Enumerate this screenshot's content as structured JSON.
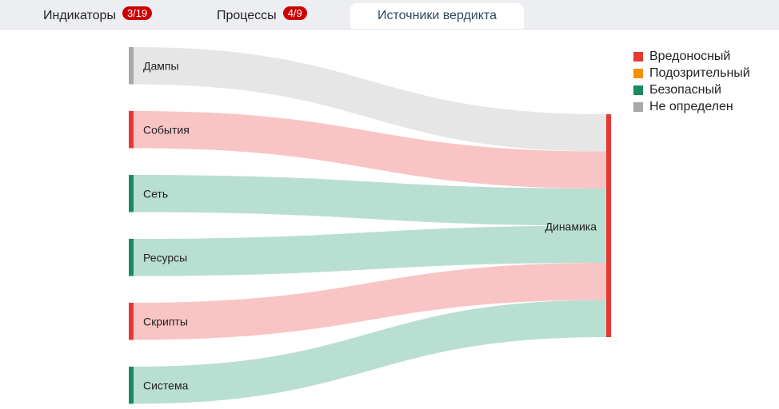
{
  "tabs": [
    {
      "label": "Индикаторы",
      "badge": "3/19"
    },
    {
      "label": "Процессы",
      "badge": "4/9"
    },
    {
      "label": "Источники вердикта",
      "active": true
    }
  ],
  "colors": {
    "malicious": "#e53935",
    "suspicious": "#f5900a",
    "safe": "#1a8a5e",
    "undefined": "#a8a8a8",
    "flow_malicious": "#f9c5c4",
    "flow_safe": "#b9ded2",
    "flow_undefined": "#e6e6e6"
  },
  "legend": [
    {
      "label": "Вредоносный",
      "status": "malicious"
    },
    {
      "label": "Подозрительный",
      "status": "suspicious"
    },
    {
      "label": "Безопасный",
      "status": "safe"
    },
    {
      "label": "Не определен",
      "status": "undefined"
    }
  ],
  "sankey": {
    "sources": [
      {
        "label": "Дампы",
        "status": "undefined",
        "value": 1
      },
      {
        "label": "События",
        "status": "malicious",
        "value": 1
      },
      {
        "label": "Сеть",
        "status": "safe",
        "value": 1
      },
      {
        "label": "Ресурсы",
        "status": "safe",
        "value": 1
      },
      {
        "label": "Скрипты",
        "status": "malicious",
        "value": 1
      },
      {
        "label": "Система",
        "status": "safe",
        "value": 1
      }
    ],
    "target": {
      "label": "Динамика",
      "status": "malicious"
    }
  }
}
